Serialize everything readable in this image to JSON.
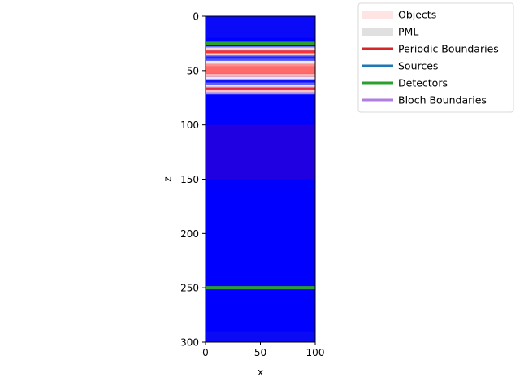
{
  "chart_data": {
    "type": "heatmap",
    "title": "",
    "xlabel": "x",
    "ylabel": "z",
    "xlim": [
      0,
      100
    ],
    "ylim": [
      300,
      0
    ],
    "y_inverted": true,
    "xticks": [
      0,
      50,
      100
    ],
    "yticks": [
      0,
      50,
      100,
      150,
      200,
      250,
      300
    ],
    "grid": false,
    "legend_placement": "upper-left-outside",
    "background_color": "#0000ff",
    "field_bands": [
      {
        "z0": 0,
        "z1": 20,
        "color": "#0a0af8"
      },
      {
        "z0": 28,
        "z1": 29,
        "color": "#b8b8ff"
      },
      {
        "z0": 29,
        "z1": 31,
        "color": "#f0d8d8"
      },
      {
        "z0": 31,
        "z1": 32,
        "color": "#ff6060"
      },
      {
        "z0": 32,
        "z1": 34,
        "color": "#ff3030"
      },
      {
        "z0": 34,
        "z1": 36,
        "color": "#ffd0d0"
      },
      {
        "z0": 36,
        "z1": 37,
        "color": "#8080ff"
      },
      {
        "z0": 37,
        "z1": 39,
        "color": "#2020ff"
      },
      {
        "z0": 39,
        "z1": 41,
        "color": "#5050ff"
      },
      {
        "z0": 41,
        "z1": 44,
        "color": "#f2eaea"
      },
      {
        "z0": 44,
        "z1": 46,
        "color": "#ff9090"
      },
      {
        "z0": 46,
        "z1": 53,
        "color": "#ff6a6a"
      },
      {
        "z0": 53,
        "z1": 56,
        "color": "#ffb0b0"
      },
      {
        "z0": 56,
        "z1": 58,
        "color": "#e8e8ff"
      },
      {
        "z0": 58,
        "z1": 59,
        "color": "#6060ff"
      },
      {
        "z0": 59,
        "z1": 61,
        "color": "#1010ff"
      },
      {
        "z0": 61,
        "z1": 63,
        "color": "#6060ff"
      },
      {
        "z0": 63,
        "z1": 65,
        "color": "#f0e4e4"
      },
      {
        "z0": 65,
        "z1": 66,
        "color": "#ff7070"
      },
      {
        "z0": 66,
        "z1": 68,
        "color": "#ff2a2a"
      },
      {
        "z0": 68,
        "z1": 70,
        "color": "#ffc0c0"
      },
      {
        "z0": 70,
        "z1": 72,
        "color": "#9090ff"
      },
      {
        "z0": 100,
        "z1": 150,
        "color": "#2000e0"
      },
      {
        "z0": 290,
        "z1": 300,
        "color": "#0a0af4"
      }
    ],
    "detectors": [
      {
        "z": 25,
        "color": "#2ca02c"
      },
      {
        "z": 250,
        "color": "#2ca02c"
      }
    ],
    "legend": [
      {
        "label": "Objects",
        "color": "#ffe4e4",
        "kind": "patch"
      },
      {
        "label": "PML",
        "color": "#e0e0e0",
        "kind": "patch"
      },
      {
        "label": "Periodic Boundaries",
        "color": "#d62728",
        "kind": "line"
      },
      {
        "label": "Sources",
        "color": "#1f77b4",
        "kind": "line"
      },
      {
        "label": "Detectors",
        "color": "#2ca02c",
        "kind": "line"
      },
      {
        "label": "Bloch Boundaries",
        "color": "#b07ee0",
        "kind": "line"
      }
    ]
  }
}
